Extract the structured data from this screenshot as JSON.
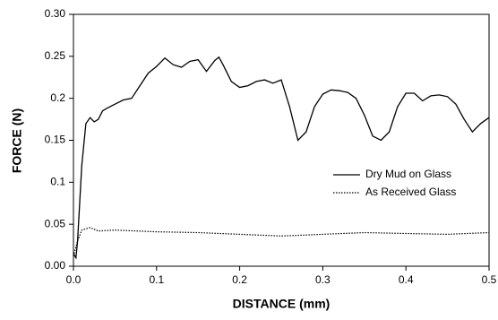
{
  "chart_data": {
    "type": "line",
    "xlabel": "DISTANCE (mm)",
    "ylabel": "FORCE (N)",
    "xlim": [
      0,
      0.5
    ],
    "ylim": [
      0,
      0.3
    ],
    "xticks": [
      {
        "value": 0,
        "label": "0.0"
      },
      0.1,
      0.2,
      0.3,
      0.4,
      0.5
    ],
    "yticks": [
      {
        "value": 0,
        "label": "0.00"
      },
      0.05,
      0.1,
      0.15,
      0.2,
      0.25,
      {
        "value": 0.3,
        "label": "0.30"
      }
    ],
    "legend": "right",
    "series": [
      {
        "name": "Dry Mud on Glass",
        "color": "#000000",
        "linestyle": "solid",
        "x": [
          0,
          0.003,
          0.005,
          0.01,
          0.015,
          0.02,
          0.025,
          0.03,
          0.035,
          0.04,
          0.05,
          0.06,
          0.07,
          0.08,
          0.09,
          0.1,
          0.11,
          0.12,
          0.13,
          0.14,
          0.15,
          0.16,
          0.17,
          0.175,
          0.18,
          0.19,
          0.2,
          0.21,
          0.22,
          0.23,
          0.24,
          0.25,
          0.26,
          0.27,
          0.28,
          0.29,
          0.3,
          0.31,
          0.32,
          0.33,
          0.34,
          0.35,
          0.36,
          0.37,
          0.38,
          0.39,
          0.4,
          0.41,
          0.42,
          0.43,
          0.44,
          0.45,
          0.46,
          0.47,
          0.48,
          0.49,
          0.5
        ],
        "values": [
          0.015,
          0.01,
          0.03,
          0.12,
          0.17,
          0.177,
          0.172,
          0.175,
          0.185,
          0.188,
          0.193,
          0.198,
          0.2,
          0.215,
          0.23,
          0.238,
          0.248,
          0.24,
          0.237,
          0.244,
          0.246,
          0.232,
          0.245,
          0.249,
          0.24,
          0.22,
          0.213,
          0.215,
          0.22,
          0.222,
          0.218,
          0.222,
          0.19,
          0.15,
          0.16,
          0.19,
          0.205,
          0.21,
          0.209,
          0.207,
          0.2,
          0.18,
          0.155,
          0.15,
          0.16,
          0.19,
          0.206,
          0.206,
          0.197,
          0.203,
          0.204,
          0.202,
          0.193,
          0.175,
          0.16,
          0.17,
          0.177
        ]
      },
      {
        "name": "As Received Glass",
        "color": "#000000",
        "linestyle": "dotted",
        "x": [
          0,
          0.005,
          0.01,
          0.02,
          0.03,
          0.05,
          0.1,
          0.15,
          0.2,
          0.25,
          0.3,
          0.35,
          0.4,
          0.45,
          0.5
        ],
        "values": [
          0.012,
          0.03,
          0.043,
          0.046,
          0.042,
          0.043,
          0.041,
          0.04,
          0.038,
          0.036,
          0.038,
          0.04,
          0.039,
          0.038,
          0.04
        ]
      }
    ]
  }
}
